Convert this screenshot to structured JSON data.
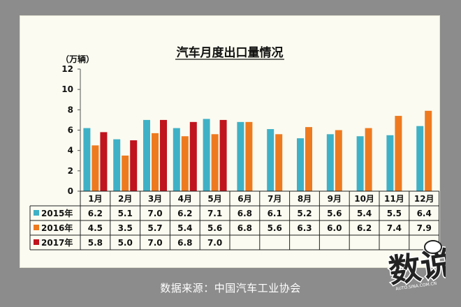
{
  "source_text": "数据来源：中国汽车工业协会",
  "logo": {
    "main_text": "数说",
    "sub_text": "AUTO.SINA.COM.CN"
  },
  "colors": {
    "s2015": "#3fb1c6",
    "s2016": "#ee7a1f",
    "s2017": "#c0141e",
    "panel": "#fbfbf1",
    "background": "#8c8c8c"
  },
  "chart_data": {
    "type": "bar",
    "title": "汽车月度出口量情况",
    "ylabel": "（万辆）",
    "ylim": [
      0,
      12
    ],
    "yticks": [
      "0",
      "2",
      "4",
      "6",
      "8",
      "10",
      "12"
    ],
    "grid": false,
    "legend": "table-left",
    "categories": [
      "1月",
      "2月",
      "3月",
      "4月",
      "5月",
      "6月",
      "7月",
      "8月",
      "9月",
      "10月",
      "11月",
      "12月"
    ],
    "series": [
      {
        "name": "2015年",
        "color": "#3fb1c6",
        "values": [
          6.2,
          5.1,
          7.0,
          6.2,
          7.1,
          6.8,
          6.1,
          5.2,
          5.6,
          5.4,
          5.5,
          6.4
        ],
        "labels": [
          "6.2",
          "5.1",
          "7.0",
          "6.2",
          "7.1",
          "6.8",
          "6.1",
          "5.2",
          "5.6",
          "5.4",
          "5.5",
          "6.4"
        ]
      },
      {
        "name": "2016年",
        "color": "#ee7a1f",
        "values": [
          4.5,
          3.5,
          5.7,
          5.4,
          5.6,
          6.8,
          5.6,
          6.3,
          6.0,
          6.2,
          7.4,
          7.9
        ],
        "labels": [
          "4.5",
          "3.5",
          "5.7",
          "5.4",
          "5.6",
          "6.8",
          "5.6",
          "6.3",
          "6.0",
          "6.2",
          "7.4",
          "7.9"
        ]
      },
      {
        "name": "2017年",
        "color": "#c0141e",
        "values": [
          5.8,
          5.0,
          7.0,
          6.8,
          7.0,
          null,
          null,
          null,
          null,
          null,
          null,
          null
        ],
        "labels": [
          "5.8",
          "5.0",
          "7.0",
          "6.8",
          "7.0",
          "",
          "",
          "",
          "",
          "",
          "",
          ""
        ]
      }
    ]
  }
}
